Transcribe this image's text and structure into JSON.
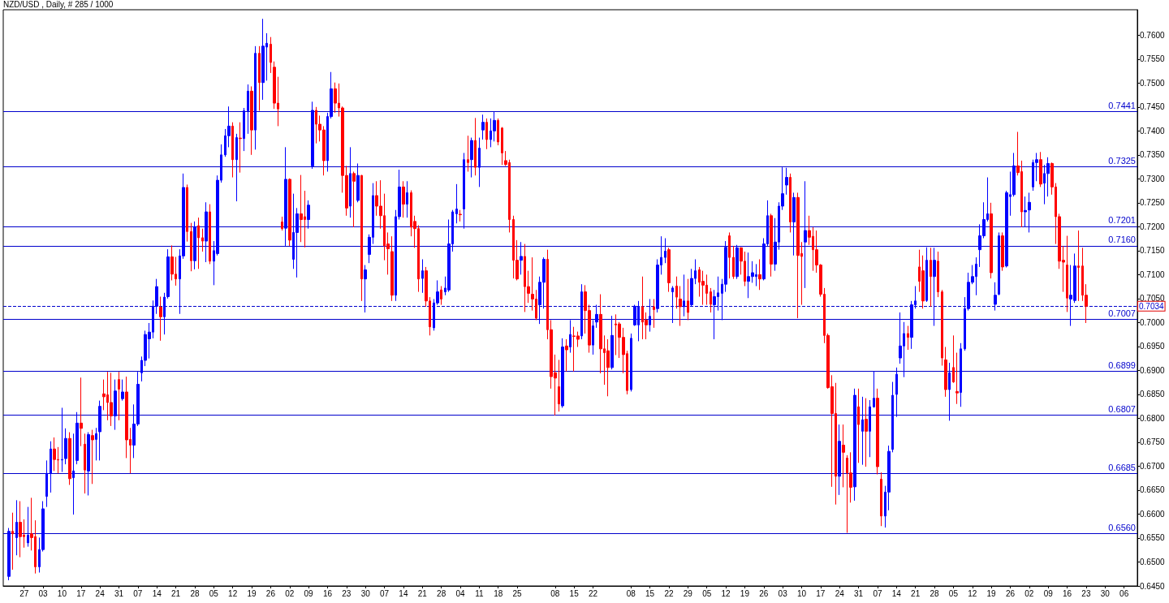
{
  "chart_data": {
    "type": "candlestick",
    "title": "NZD/USD , Daily, # 285 / 1000",
    "categories": [
      null,
      null,
      null,
      null,
      null,
      "27",
      null,
      null,
      null,
      null,
      "03",
      null,
      null,
      null,
      null,
      "10",
      null,
      null,
      null,
      null,
      "17",
      null,
      null,
      null,
      null,
      "24",
      null,
      null,
      null,
      null,
      "31",
      null,
      null,
      null,
      null,
      "07",
      null,
      null,
      null,
      null,
      "14",
      null,
      null,
      null,
      null,
      "21",
      null,
      null,
      null,
      null,
      "28",
      null,
      null,
      null,
      null,
      "05",
      null,
      null,
      null,
      null,
      "12",
      null,
      null,
      null,
      null,
      "19",
      null,
      null,
      null,
      null,
      "26",
      null,
      null,
      null,
      null,
      "02",
      null,
      null,
      null,
      null,
      "09",
      null,
      null,
      null,
      null,
      "16",
      null,
      null,
      null,
      null,
      "23",
      null,
      null,
      null,
      null,
      "30",
      null,
      null,
      null,
      null,
      "07",
      null,
      null,
      null,
      null,
      "14",
      null,
      null,
      null,
      null,
      "21",
      null,
      null,
      null,
      null,
      "28",
      null,
      null,
      null,
      null,
      "04",
      null,
      null,
      null,
      null,
      "11",
      null,
      null,
      null,
      null,
      "18",
      null,
      null,
      null,
      null,
      "25",
      null,
      null,
      null,
      null,
      null,
      null,
      null,
      null,
      null,
      "08",
      null,
      null,
      null,
      null,
      "15",
      null,
      null,
      null,
      null,
      "22",
      null,
      null,
      null,
      null,
      null,
      null,
      null,
      null,
      null,
      "08",
      null,
      null,
      null,
      null,
      "15",
      null,
      null,
      null,
      null,
      "22",
      null,
      null,
      null,
      null,
      "29",
      null,
      null,
      null,
      null,
      "05",
      null,
      null,
      null,
      null,
      "12",
      null,
      null,
      null,
      null,
      "19",
      null,
      null,
      null,
      null,
      "26",
      null,
      null,
      null,
      null,
      "03",
      null,
      null,
      null,
      null,
      "10",
      null,
      null,
      null,
      null,
      "17",
      null,
      null,
      null,
      null,
      "24",
      null,
      null,
      null,
      null,
      "31",
      null,
      null,
      null,
      null,
      "07",
      null,
      null,
      null,
      null,
      "14",
      null,
      null,
      null,
      null,
      "21",
      null,
      null,
      null,
      null,
      "28",
      null,
      null,
      null,
      null,
      "05",
      null,
      null,
      null,
      null,
      "12",
      null,
      null,
      null,
      null,
      "19",
      null,
      null,
      null,
      null,
      "26",
      null,
      null,
      null,
      null,
      "02",
      null,
      null,
      null,
      null,
      "09",
      null,
      null,
      null,
      null,
      "16",
      null,
      null,
      null,
      null,
      "23",
      null,
      null,
      null,
      null,
      "30",
      null,
      null,
      null,
      null,
      "06",
      null,
      null,
      null
    ],
    "ohlc": [
      null,
      [
        0.647,
        0.6571,
        0.6462,
        0.6564
      ],
      [
        0.6564,
        0.6603,
        0.6484,
        0.6559
      ],
      [
        0.6551,
        0.6629,
        0.6514,
        0.6583
      ],
      [
        0.6583,
        0.6627,
        0.651,
        0.6553
      ],
      [
        0.6556,
        0.6589,
        0.653,
        0.6553
      ],
      [
        0.654,
        0.6615,
        0.6532,
        0.6556
      ],
      [
        0.6559,
        0.6634,
        0.6524,
        0.6551
      ],
      [
        0.6553,
        0.6587,
        0.6476,
        0.649
      ],
      [
        0.649,
        0.6551,
        0.6478,
        0.6526
      ],
      [
        0.6526,
        0.6627,
        0.6522,
        0.6611
      ],
      [
        0.6637,
        0.6712,
        0.6615,
        0.6685
      ],
      [
        0.6685,
        0.6752,
        0.6645,
        0.6736
      ],
      [
        0.6736,
        0.676,
        0.669,
        0.6714
      ],
      [
        0.6714,
        0.674,
        0.6685,
        0.6713
      ],
      [
        0.6713,
        0.6822,
        0.6688,
        0.6714
      ],
      [
        0.6716,
        0.6779,
        0.6704,
        0.6758
      ],
      [
        0.6758,
        0.6771,
        0.6661,
        0.6674
      ],
      [
        0.6676,
        0.6768,
        0.6599,
        0.669
      ],
      [
        0.6712,
        0.6813,
        0.6704,
        0.679
      ],
      [
        0.679,
        0.6885,
        0.6742,
        0.6779
      ],
      [
        0.6746,
        0.6768,
        0.6643,
        0.6692
      ],
      [
        0.669,
        0.6771,
        0.6639,
        0.6766
      ],
      [
        0.6764,
        0.6776,
        0.6663,
        0.6755
      ],
      [
        0.6756,
        0.678,
        0.6712,
        0.6768
      ],
      [
        0.6772,
        0.6837,
        0.6712,
        0.6825
      ],
      [
        0.6851,
        0.6881,
        0.6817,
        0.6845
      ],
      [
        0.6849,
        0.6897,
        0.6796,
        0.6833
      ],
      [
        0.6833,
        0.6895,
        0.6784,
        0.6805
      ],
      [
        0.6805,
        0.6881,
        0.6776,
        0.6857
      ],
      [
        0.6881,
        0.6897,
        0.6796,
        0.6861
      ],
      [
        0.6841,
        0.6881,
        0.6837,
        0.6855
      ],
      [
        0.6855,
        0.6887,
        0.6717,
        0.6755
      ],
      [
        0.6756,
        0.678,
        0.6685,
        0.6744
      ],
      [
        0.6744,
        0.6829,
        0.6717,
        0.6788
      ],
      [
        0.6788,
        0.6897,
        0.6784,
        0.6871
      ],
      [
        0.6895,
        0.6929,
        0.6877,
        0.6921
      ],
      [
        0.6921,
        0.6983,
        0.6909,
        0.6975
      ],
      [
        0.6966,
        0.6999,
        0.6925,
        0.698
      ],
      [
        0.698,
        0.7046,
        0.6967,
        0.7034
      ],
      [
        0.7034,
        0.7091,
        0.7018,
        0.7075
      ],
      [
        0.7032,
        0.7054,
        0.6962,
        0.7012
      ],
      [
        0.7012,
        0.7062,
        0.6975,
        0.7053
      ],
      [
        0.7054,
        0.7153,
        0.705,
        0.7137
      ],
      [
        0.7137,
        0.7161,
        0.7088,
        0.7101
      ],
      [
        0.7101,
        0.7137,
        0.7077,
        0.7091
      ],
      [
        0.7091,
        0.7153,
        0.7018,
        0.7139
      ],
      [
        0.7139,
        0.7311,
        0.7133,
        0.7282
      ],
      [
        0.7282,
        0.7288,
        0.7169,
        0.719
      ],
      [
        0.719,
        0.7208,
        0.7107,
        0.7129
      ],
      [
        0.7129,
        0.7211,
        0.7111,
        0.72
      ],
      [
        0.7202,
        0.7219,
        0.7112,
        0.7177
      ],
      [
        0.7177,
        0.7196,
        0.7148,
        0.717
      ],
      [
        0.717,
        0.7251,
        0.7126,
        0.7231
      ],
      [
        0.7231,
        0.7247,
        0.7122,
        0.7128
      ],
      [
        0.7128,
        0.717,
        0.7078,
        0.715
      ],
      [
        0.7144,
        0.7307,
        0.714,
        0.7297
      ],
      [
        0.7297,
        0.7372,
        0.7292,
        0.735
      ],
      [
        0.735,
        0.7404,
        0.7346,
        0.739
      ],
      [
        0.739,
        0.7451,
        0.7366,
        0.741
      ],
      [
        0.741,
        0.7418,
        0.7303,
        0.734
      ],
      [
        0.734,
        0.7394,
        0.7253,
        0.7386
      ],
      [
        0.7385,
        0.7418,
        0.7313,
        0.7384
      ],
      [
        0.7384,
        0.7448,
        0.7358,
        0.7442
      ],
      [
        0.7442,
        0.7497,
        0.7394,
        0.7483
      ],
      [
        0.7483,
        0.7493,
        0.735,
        0.7402
      ],
      [
        0.7402,
        0.7577,
        0.7361,
        0.7562
      ],
      [
        0.7562,
        0.7577,
        0.7442,
        0.7501
      ],
      [
        0.7501,
        0.7634,
        0.7465,
        0.7577
      ],
      [
        0.7575,
        0.7604,
        0.7505,
        0.7583
      ],
      [
        0.7581,
        0.7596,
        0.7521,
        0.7543
      ],
      [
        0.7533,
        0.7545,
        0.7446,
        0.7458
      ],
      [
        0.7458,
        0.7513,
        0.741,
        0.7446
      ],
      [
        0.721,
        0.7221,
        0.7192,
        0.7196
      ],
      [
        0.7197,
        0.7366,
        0.716,
        0.7299
      ],
      [
        0.7299,
        0.7301,
        0.716,
        0.7172
      ],
      [
        0.7132,
        0.7269,
        0.7112,
        0.7188
      ],
      [
        0.7188,
        0.7239,
        0.7094,
        0.7227
      ],
      [
        0.7227,
        0.7308,
        0.7168,
        0.7215
      ],
      [
        0.7221,
        0.7275,
        0.7157,
        0.7215
      ],
      [
        0.7215,
        0.7255,
        0.7196,
        0.7245
      ],
      [
        0.7327,
        0.7461,
        0.7321,
        0.7443
      ],
      [
        0.7443,
        0.745,
        0.7374,
        0.7414
      ],
      [
        0.7414,
        0.7432,
        0.7378,
        0.7402
      ],
      [
        0.7402,
        0.741,
        0.7307,
        0.7338
      ],
      [
        0.7338,
        0.7438,
        0.7315,
        0.743
      ],
      [
        0.743,
        0.7523,
        0.7426,
        0.7488
      ],
      [
        0.7488,
        0.7501,
        0.7438,
        0.7458
      ],
      [
        0.7458,
        0.7499,
        0.743,
        0.7448
      ],
      [
        0.7448,
        0.7451,
        0.7271,
        0.7307
      ],
      [
        0.7307,
        0.7327,
        0.7223,
        0.7239
      ],
      [
        0.7243,
        0.7366,
        0.7219,
        0.7311
      ],
      [
        0.7311,
        0.7315,
        0.7199,
        0.7295
      ],
      [
        0.7255,
        0.7332,
        0.7251,
        0.7307
      ],
      [
        0.7307,
        0.7308,
        0.7045,
        0.7091
      ],
      [
        0.7091,
        0.712,
        0.7021,
        0.711
      ],
      [
        0.7142,
        0.7184,
        0.7124,
        0.7178
      ],
      [
        0.7178,
        0.7291,
        0.7164,
        0.7265
      ],
      [
        0.7265,
        0.7295,
        0.7223,
        0.7243
      ],
      [
        0.7243,
        0.7297,
        0.7196,
        0.7223
      ],
      [
        0.7223,
        0.7269,
        0.713,
        0.716
      ],
      [
        0.7164,
        0.7188,
        0.71,
        0.7154
      ],
      [
        0.7148,
        0.718,
        0.7045,
        0.7057
      ],
      [
        0.7057,
        0.7235,
        0.7045,
        0.7221
      ],
      [
        0.7221,
        0.7319,
        0.7215,
        0.7283
      ],
      [
        0.7283,
        0.7295,
        0.7219,
        0.7247
      ],
      [
        0.7247,
        0.7295,
        0.7219,
        0.7271
      ],
      [
        0.7271,
        0.7276,
        0.718,
        0.7199
      ],
      [
        0.7211,
        0.7223,
        0.7156,
        0.7196
      ],
      [
        0.7196,
        0.7203,
        0.7064,
        0.7091
      ],
      [
        0.7092,
        0.7132,
        0.7062,
        0.7108
      ],
      [
        0.7108,
        0.7116,
        0.7033,
        0.7045
      ],
      [
        0.7045,
        0.7053,
        0.6973,
        0.6991
      ],
      [
        0.6989,
        0.7049,
        0.6983,
        0.7041
      ],
      [
        0.7041,
        0.7088,
        0.7037,
        0.7064
      ],
      [
        0.7068,
        0.7076,
        0.7037,
        0.7049
      ],
      [
        0.7064,
        0.7096,
        0.7057,
        0.7072
      ],
      [
        0.7068,
        0.7215,
        0.7064,
        0.7164
      ],
      [
        0.7164,
        0.7235,
        0.7148,
        0.7231
      ],
      [
        0.7227,
        0.7289,
        0.7207,
        0.7237
      ],
      [
        0.7226,
        0.7235,
        0.7211,
        0.7225
      ],
      [
        0.7237,
        0.7354,
        0.7196,
        0.734
      ],
      [
        0.734,
        0.739,
        0.7315,
        0.7334
      ],
      [
        0.734,
        0.7386,
        0.7303,
        0.738
      ],
      [
        0.738,
        0.7427,
        0.7307,
        0.7324
      ],
      [
        0.7324,
        0.7386,
        0.7283,
        0.7364
      ],
      [
        0.7402,
        0.7434,
        0.7382,
        0.7418
      ],
      [
        0.7418,
        0.7426,
        0.7362,
        0.7382
      ],
      [
        0.7382,
        0.7426,
        0.7366,
        0.74
      ],
      [
        0.74,
        0.744,
        0.7378,
        0.7422
      ],
      [
        0.7422,
        0.7426,
        0.737,
        0.7377
      ],
      [
        0.7406,
        0.7408,
        0.7329,
        0.7354
      ],
      [
        0.7338,
        0.7358,
        0.7327,
        0.733
      ],
      [
        0.7334,
        0.734,
        0.7188,
        0.7215
      ],
      [
        0.7215,
        0.7223,
        0.7092,
        0.713
      ],
      [
        0.713,
        0.7172,
        0.7088,
        0.7091
      ],
      [
        0.713,
        0.7168,
        0.71,
        0.7138
      ],
      [
        0.7138,
        0.7164,
        0.7022,
        0.7075
      ],
      [
        0.7075,
        0.7108,
        0.7041,
        0.7061
      ],
      [
        0.7059,
        0.7136,
        0.7025,
        0.7049
      ],
      [
        0.7049,
        0.7068,
        0.7005,
        0.7009
      ],
      [
        0.7037,
        0.7096,
        0.6997,
        0.7084
      ],
      [
        0.7084,
        0.7136,
        0.7029,
        0.7132
      ],
      [
        0.7132,
        0.7152,
        0.6965,
        0.6985
      ],
      [
        0.6985,
        0.7005,
        0.6862,
        0.6887
      ],
      [
        0.6895,
        0.6933,
        0.6806,
        0.6884
      ],
      [
        0.6866,
        0.6922,
        0.6814,
        0.683
      ],
      [
        0.6826,
        0.6967,
        0.6822,
        0.6949
      ],
      [
        0.6951,
        0.6965,
        0.6898,
        0.6943
      ],
      [
        0.6949,
        0.7005,
        0.6937,
        0.6975
      ],
      [
        0.6972,
        0.6991,
        0.6898,
        0.6971
      ],
      [
        0.6972,
        0.6981,
        0.6949,
        0.6965
      ],
      [
        0.6972,
        0.708,
        0.6965,
        0.7064
      ],
      [
        0.7064,
        0.7078,
        0.6977,
        0.7025
      ],
      [
        0.7025,
        0.7037,
        0.6937,
        0.6953
      ],
      [
        0.6953,
        0.7005,
        0.6933,
        0.6993
      ],
      [
        0.7001,
        0.7037,
        0.6989,
        0.7017
      ],
      [
        0.7017,
        0.7059,
        0.6894,
        0.6945
      ],
      [
        0.6945,
        0.6973,
        0.687,
        0.6937
      ],
      [
        0.6941,
        0.6965,
        0.6846,
        0.6906
      ],
      [
        0.6906,
        0.7014,
        0.6902,
        0.6973
      ],
      [
        0.6997,
        0.7017,
        0.6932,
        0.6995
      ],
      [
        0.6997,
        0.7001,
        0.6926,
        0.6969
      ],
      [
        0.6969,
        0.6989,
        0.6894,
        0.6933
      ],
      [
        0.6935,
        0.6941,
        0.685,
        0.6858
      ],
      [
        0.686,
        0.6977,
        0.6856,
        0.6967
      ],
      [
        0.6995,
        0.7037,
        0.6993,
        0.7034
      ],
      [
        0.6995,
        0.7045,
        0.6961,
        0.7033
      ],
      [
        0.7033,
        0.7096,
        0.6965,
        0.7001
      ],
      [
        0.7005,
        0.7021,
        0.6965,
        0.6995
      ],
      [
        0.6995,
        0.7049,
        0.6981,
        0.7013
      ],
      [
        0.7033,
        0.7049,
        0.6989,
        0.7027
      ],
      [
        0.7029,
        0.7132,
        0.7021,
        0.712
      ],
      [
        0.712,
        0.718,
        0.71,
        0.7136
      ],
      [
        0.7136,
        0.7176,
        0.7124,
        0.7149
      ],
      [
        0.7152,
        0.7156,
        0.7064,
        0.7083
      ],
      [
        0.7064,
        0.7076,
        0.6999,
        0.7072
      ],
      [
        0.7076,
        0.7096,
        0.7029,
        0.7053
      ],
      [
        0.7049,
        0.7076,
        0.6993,
        0.7033
      ],
      [
        0.7033,
        0.71,
        0.7013,
        0.7045
      ],
      [
        0.7045,
        0.7091,
        0.7005,
        0.7021
      ],
      [
        0.7037,
        0.7112,
        0.7033,
        0.7092
      ],
      [
        0.7092,
        0.7132,
        0.708,
        0.7108
      ],
      [
        0.711,
        0.7116,
        0.7054,
        0.7084
      ],
      [
        0.7086,
        0.7108,
        0.7037,
        0.7078
      ],
      [
        0.7078,
        0.71,
        0.7037,
        0.7061
      ],
      [
        0.7064,
        0.7072,
        0.7021,
        0.7038
      ],
      [
        0.7037,
        0.7068,
        0.6965,
        0.7054
      ],
      [
        0.7054,
        0.7096,
        0.7025,
        0.7062
      ],
      [
        0.7061,
        0.7091,
        0.7005,
        0.708
      ],
      [
        0.708,
        0.717,
        0.7064,
        0.7157
      ],
      [
        0.7181,
        0.7188,
        0.7092,
        0.7136
      ],
      [
        0.7136,
        0.716,
        0.7091,
        0.7096
      ],
      [
        0.7096,
        0.7162,
        0.7091,
        0.7156
      ],
      [
        0.7156,
        0.7157,
        0.71,
        0.7128
      ],
      [
        0.7128,
        0.7148,
        0.7076,
        0.7086
      ],
      [
        0.7086,
        0.7146,
        0.7051,
        0.7096
      ],
      [
        0.7096,
        0.7128,
        0.7083,
        0.7104
      ],
      [
        0.7096,
        0.7122,
        0.7076,
        0.71
      ],
      [
        0.71,
        0.7132,
        0.7068,
        0.7091
      ],
      [
        0.7091,
        0.7176,
        0.7088,
        0.7164
      ],
      [
        0.7164,
        0.7255,
        0.716,
        0.7223
      ],
      [
        0.7223,
        0.7227,
        0.7096,
        0.7122
      ],
      [
        0.7122,
        0.7218,
        0.7108,
        0.7168
      ],
      [
        0.7168,
        0.7251,
        0.7152,
        0.7243
      ],
      [
        0.7243,
        0.7324,
        0.7235,
        0.7269
      ],
      [
        0.7287,
        0.7323,
        0.7267,
        0.7303
      ],
      [
        0.7303,
        0.7311,
        0.7188,
        0.721
      ],
      [
        0.721,
        0.7271,
        0.714,
        0.7261
      ],
      [
        0.7261,
        0.7271,
        0.7009,
        0.714
      ],
      [
        0.7144,
        0.7168,
        0.7037,
        0.7138
      ],
      [
        0.7168,
        0.7295,
        0.7072,
        0.7192
      ],
      [
        0.7192,
        0.7223,
        0.7162,
        0.7178
      ],
      [
        0.718,
        0.7199,
        0.7108,
        0.7152
      ],
      [
        0.7152,
        0.7192,
        0.7104,
        0.712
      ],
      [
        0.712,
        0.7122,
        0.7054,
        0.7059
      ],
      [
        0.7059,
        0.7072,
        0.6957,
        0.6973
      ],
      [
        0.6973,
        0.6977,
        0.6862,
        0.6864
      ],
      [
        0.6866,
        0.689,
        0.6657,
        0.681
      ],
      [
        0.681,
        0.6874,
        0.662,
        0.6679
      ],
      [
        0.6679,
        0.6787,
        0.664,
        0.6752
      ],
      [
        0.6744,
        0.6787,
        0.6656,
        0.6729
      ],
      [
        0.6717,
        0.6723,
        0.6561,
        0.6686
      ],
      [
        0.6686,
        0.6729,
        0.6624,
        0.6656
      ],
      [
        0.6657,
        0.6862,
        0.6628,
        0.6848
      ],
      [
        0.6824,
        0.6862,
        0.6707,
        0.6787
      ],
      [
        0.6773,
        0.6845,
        0.6703,
        0.6797
      ],
      [
        0.6798,
        0.6842,
        0.6699,
        0.6773
      ],
      [
        0.6773,
        0.6838,
        0.6719,
        0.6824
      ],
      [
        0.6824,
        0.6898,
        0.6822,
        0.6842
      ],
      [
        0.6842,
        0.6862,
        0.6683,
        0.6699
      ],
      [
        0.6673,
        0.6687,
        0.6575,
        0.6596
      ],
      [
        0.6596,
        0.6659,
        0.6572,
        0.6646
      ],
      [
        0.6646,
        0.6743,
        0.6608,
        0.6731
      ],
      [
        0.6735,
        0.6876,
        0.6729,
        0.6848
      ],
      [
        0.685,
        0.6906,
        0.6803,
        0.6892
      ],
      [
        0.6926,
        0.7021,
        0.6914,
        0.6951
      ],
      [
        0.6951,
        0.7001,
        0.6886,
        0.6977
      ],
      [
        0.6977,
        0.6993,
        0.6943,
        0.6969
      ],
      [
        0.6969,
        0.7045,
        0.6945,
        0.7037
      ],
      [
        0.7037,
        0.7076,
        0.7029,
        0.7045
      ],
      [
        0.7116,
        0.7152,
        0.7064,
        0.7086
      ],
      [
        0.7108,
        0.714,
        0.7029,
        0.7045
      ],
      [
        0.7046,
        0.7157,
        0.7043,
        0.713
      ],
      [
        0.713,
        0.7156,
        0.7033,
        0.7096
      ],
      [
        0.7096,
        0.7156,
        0.6993,
        0.713
      ],
      [
        0.7128,
        0.7148,
        0.7053,
        0.7064
      ],
      [
        0.7064,
        0.7068,
        0.691,
        0.6926
      ],
      [
        0.6922,
        0.6949,
        0.6845,
        0.686
      ],
      [
        0.686,
        0.6916,
        0.6795,
        0.6895
      ],
      [
        0.6906,
        0.6973,
        0.6874,
        0.6876
      ],
      [
        0.6856,
        0.6937,
        0.683,
        0.6853
      ],
      [
        0.6854,
        0.6957,
        0.6824,
        0.6945
      ],
      [
        0.6945,
        0.7053,
        0.6941,
        0.7029
      ],
      [
        0.7029,
        0.7104,
        0.7025,
        0.7084
      ],
      [
        0.7084,
        0.712,
        0.708,
        0.7096
      ],
      [
        0.7096,
        0.7136,
        0.7057,
        0.7122
      ],
      [
        0.7152,
        0.7205,
        0.7116,
        0.7181
      ],
      [
        0.7181,
        0.7251,
        0.7176,
        0.7215
      ],
      [
        0.7215,
        0.7303,
        0.7211,
        0.7227
      ],
      [
        0.7227,
        0.725,
        0.7092,
        0.7104
      ],
      [
        0.7038,
        0.7084,
        0.7025,
        0.7057
      ],
      [
        0.7059,
        0.7188,
        0.7057,
        0.7181
      ],
      [
        0.7181,
        0.7188,
        0.7108,
        0.7116
      ],
      [
        0.7118,
        0.7275,
        0.7115,
        0.7271
      ],
      [
        0.7263,
        0.7315,
        0.7223,
        0.7267
      ],
      [
        0.7267,
        0.7354,
        0.7263,
        0.7327
      ],
      [
        0.7327,
        0.7398,
        0.7307,
        0.7313
      ],
      [
        0.7315,
        0.7338,
        0.7199,
        0.7231
      ],
      [
        0.7231,
        0.7263,
        0.7199,
        0.7234
      ],
      [
        0.7235,
        0.7271,
        0.7188,
        0.7251
      ],
      [
        0.7283,
        0.734,
        0.7275,
        0.7334
      ],
      [
        0.7334,
        0.7354,
        0.7295,
        0.734
      ],
      [
        0.734,
        0.7356,
        0.7283,
        0.7289
      ],
      [
        0.7291,
        0.7329,
        0.7247,
        0.7311
      ],
      [
        0.7311,
        0.7345,
        0.7263,
        0.7332
      ],
      [
        0.7332,
        0.7334,
        0.7267,
        0.7283
      ],
      [
        0.7283,
        0.7291,
        0.7164,
        0.7221
      ],
      [
        0.7221,
        0.7227,
        0.7112,
        0.7128
      ],
      [
        0.713,
        0.716,
        0.7064,
        0.7126
      ],
      [
        0.712,
        0.7181,
        0.7022,
        0.7051
      ],
      [
        0.7049,
        0.712,
        0.6993,
        0.7057
      ],
      [
        0.7046,
        0.7144,
        0.7041,
        0.7118
      ],
      [
        0.7118,
        0.7192,
        0.7045,
        0.7115
      ],
      [
        0.7118,
        0.7156,
        0.7045,
        0.7057
      ],
      [
        0.7057,
        0.708,
        0.6999,
        0.7034
      ],
      null,
      null,
      null,
      null,
      null,
      null,
      null,
      null,
      null,
      null,
      null,
      null,
      null
    ],
    "colors": [
      null,
      "#0000ff",
      "#ff0000",
      "#0000ff",
      "#ff0000",
      "#ff0000",
      "#0000ff",
      "#ff0000",
      "#ff0000",
      "#0000ff",
      "#0000ff",
      "#0000ff",
      "#0000ff",
      "#ff0000",
      "#ff0000",
      "#0000ff",
      "#0000ff",
      "#ff0000",
      "#0000ff",
      "#0000ff",
      "#ff0000",
      "#ff0000",
      "#0000ff",
      "#ff0000",
      "#0000ff",
      "#0000ff",
      "#ff0000",
      "#ff0000",
      "#ff0000",
      "#0000ff",
      "#ff0000",
      "#0000ff",
      "#ff0000",
      "#ff0000",
      "#0000ff",
      "#0000ff",
      "#0000ff",
      "#0000ff",
      "#0000ff",
      "#0000ff",
      "#0000ff",
      "#ff0000",
      "#0000ff",
      "#0000ff",
      "#ff0000",
      "#ff0000",
      "#0000ff",
      "#0000ff",
      "#ff0000",
      "#ff0000",
      "#0000ff",
      "#ff0000",
      "#ff0000",
      "#0000ff",
      "#ff0000",
      "#0000ff",
      "#0000ff",
      "#0000ff",
      "#0000ff",
      "#0000ff",
      "#ff0000",
      "#0000ff",
      "#ff0000",
      "#0000ff",
      "#0000ff",
      "#ff0000",
      "#0000ff",
      "#ff0000",
      "#0000ff",
      "#0000ff",
      "#ff0000",
      "#ff0000",
      "#ff0000",
      "#ff0000",
      "#0000ff",
      "#ff0000",
      "#0000ff",
      "#0000ff",
      "#ff0000",
      "#ff0000",
      "#0000ff",
      "#0000ff",
      "#ff0000",
      "#ff0000",
      "#ff0000",
      "#0000ff",
      "#0000ff",
      "#ff0000",
      "#ff0000",
      "#ff0000",
      "#ff0000",
      "#0000ff",
      "#ff0000",
      "#0000ff",
      "#ff0000",
      "#0000ff",
      "#0000ff",
      "#0000ff",
      "#ff0000",
      "#ff0000",
      "#ff0000",
      "#ff0000",
      "#ff0000",
      "#0000ff",
      "#0000ff",
      "#ff0000",
      "#0000ff",
      "#ff0000",
      "#ff0000",
      "#ff0000",
      "#0000ff",
      "#ff0000",
      "#ff0000",
      "#0000ff",
      "#0000ff",
      "#ff0000",
      "#0000ff",
      "#0000ff",
      "#0000ff",
      "#0000ff",
      "#ff0000",
      "#0000ff",
      "#ff0000",
      "#0000ff",
      "#ff0000",
      "#0000ff",
      "#0000ff",
      "#ff0000",
      "#0000ff",
      "#0000ff",
      "#ff0000",
      "#ff0000",
      "#ff0000",
      "#ff0000",
      "#ff0000",
      "#ff0000",
      "#0000ff",
      "#ff0000",
      "#ff0000",
      "#ff0000",
      "#ff0000",
      "#0000ff",
      "#0000ff",
      "#ff0000",
      "#ff0000",
      "#ff0000",
      "#ff0000",
      "#0000ff",
      "#ff0000",
      "#0000ff",
      "#ff0000",
      "#ff0000",
      "#0000ff",
      "#ff0000",
      "#ff0000",
      "#0000ff",
      "#0000ff",
      "#ff0000",
      "#ff0000",
      "#ff0000",
      "#0000ff",
      "#ff0000",
      "#ff0000",
      "#ff0000",
      "#ff0000",
      "#0000ff",
      "#0000ff",
      "#0000ff",
      "#ff0000",
      "#ff0000",
      "#0000ff",
      "#ff0000",
      "#0000ff",
      "#0000ff",
      "#0000ff",
      "#ff0000",
      "#0000ff",
      "#ff0000",
      "#ff0000",
      "#0000ff",
      "#ff0000",
      "#0000ff",
      "#0000ff",
      "#ff0000",
      "#ff0000",
      "#ff0000",
      "#ff0000",
      "#0000ff",
      "#0000ff",
      "#0000ff",
      "#0000ff",
      "#ff0000",
      "#ff0000",
      "#0000ff",
      "#ff0000",
      "#ff0000",
      "#0000ff",
      "#0000ff",
      "#0000ff",
      "#ff0000",
      "#0000ff",
      "#0000ff",
      "#ff0000",
      "#0000ff",
      "#0000ff",
      "#0000ff",
      "#0000ff",
      "#ff0000",
      "#0000ff",
      "#ff0000",
      "#ff0000",
      "#0000ff",
      "#ff0000",
      "#ff0000",
      "#ff0000",
      "#ff0000",
      "#ff0000",
      "#ff0000",
      "#ff0000",
      "#ff0000",
      "#0000ff",
      "#ff0000",
      "#ff0000",
      "#ff0000",
      "#0000ff",
      "#ff0000",
      "#0000ff",
      "#ff0000",
      "#0000ff",
      "#0000ff",
      "#ff0000",
      "#ff0000",
      "#0000ff",
      "#0000ff",
      "#0000ff",
      "#0000ff",
      "#0000ff",
      "#0000ff",
      "#ff0000",
      "#0000ff",
      "#0000ff",
      "#ff0000",
      "#ff0000",
      "#0000ff",
      "#ff0000",
      "#0000ff",
      "#ff0000",
      "#ff0000",
      "#ff0000",
      "#0000ff",
      "#ff0000",
      "#ff0000",
      "#0000ff",
      "#0000ff",
      "#0000ff",
      "#0000ff",
      "#0000ff",
      "#0000ff",
      "#0000ff",
      "#0000ff",
      "#ff0000",
      "#0000ff",
      "#0000ff",
      "#ff0000",
      "#0000ff",
      "#0000ff",
      "#0000ff",
      "#ff0000",
      "#ff0000",
      "#0000ff",
      "#0000ff",
      "#0000ff",
      "#0000ff",
      "#ff0000",
      "#0000ff",
      "#0000ff",
      "#ff0000",
      "#ff0000",
      "#ff0000",
      "#ff0000",
      "#ff0000",
      "#0000ff",
      "#0000ff",
      "#ff0000",
      "#ff0000",
      "#ff0000",
      null,
      null,
      null,
      null,
      null,
      null,
      null,
      null,
      null,
      null,
      null,
      null,
      null
    ],
    "ylim": [
      0.645,
      0.7653
    ],
    "yticks": [
      {
        "value": 0.645,
        "label": "0.6450"
      },
      {
        "value": 0.65,
        "label": "0.6500"
      },
      {
        "value": 0.655,
        "label": "0.6550"
      },
      {
        "value": 0.66,
        "label": "0.6600"
      },
      {
        "value": 0.665,
        "label": "0.6650"
      },
      {
        "value": 0.67,
        "label": "0.6700"
      },
      {
        "value": 0.675,
        "label": "0.6750"
      },
      {
        "value": 0.68,
        "label": "0.6800"
      },
      {
        "value": 0.685,
        "label": "0.6850"
      },
      {
        "value": 0.69,
        "label": "0.6900"
      },
      {
        "value": 0.695,
        "label": "0.6950"
      },
      {
        "value": 0.7,
        "label": "0.7000"
      },
      {
        "value": 0.705,
        "label": "0.7050"
      },
      {
        "value": 0.71,
        "label": "0.7100"
      },
      {
        "value": 0.715,
        "label": "0.7150"
      },
      {
        "value": 0.72,
        "label": "0.7200"
      },
      {
        "value": 0.725,
        "label": "0.7250"
      },
      {
        "value": 0.73,
        "label": "0.7300"
      },
      {
        "value": 0.735,
        "label": "0.7350"
      },
      {
        "value": 0.74,
        "label": "0.7400"
      },
      {
        "value": 0.745,
        "label": "0.7450"
      },
      {
        "value": 0.75,
        "label": "0.7500"
      },
      {
        "value": 0.755,
        "label": "0.7550"
      },
      {
        "value": 0.76,
        "label": "0.7600"
      }
    ],
    "ref_lines": [
      {
        "axis": "y",
        "value": 0.7441,
        "label": "0.7441",
        "color": "#0000cc"
      },
      {
        "axis": "y",
        "value": 0.7325,
        "label": "0.7325",
        "color": "#0000cc"
      },
      {
        "axis": "y",
        "value": 0.7201,
        "label": "0.7201",
        "color": "#0000cc"
      },
      {
        "axis": "y",
        "value": 0.716,
        "label": "0.7160",
        "color": "#0000cc"
      },
      {
        "axis": "y",
        "value": 0.7034,
        "label": "0.7034",
        "color": "#0000cc",
        "line_style": "dashed"
      },
      {
        "axis": "y",
        "value": 0.7007,
        "label": "0.7007",
        "color": "#0000cc"
      },
      {
        "axis": "y",
        "value": 0.6899,
        "label": "0.6899",
        "color": "#0000cc"
      },
      {
        "axis": "y",
        "value": 0.6807,
        "label": "0.6807",
        "color": "#0000cc"
      },
      {
        "axis": "y",
        "value": 0.6685,
        "label": "0.6685",
        "color": "#0000cc"
      },
      {
        "axis": "y",
        "value": 0.656,
        "label": "0.6560",
        "color": "#0000cc"
      }
    ]
  }
}
